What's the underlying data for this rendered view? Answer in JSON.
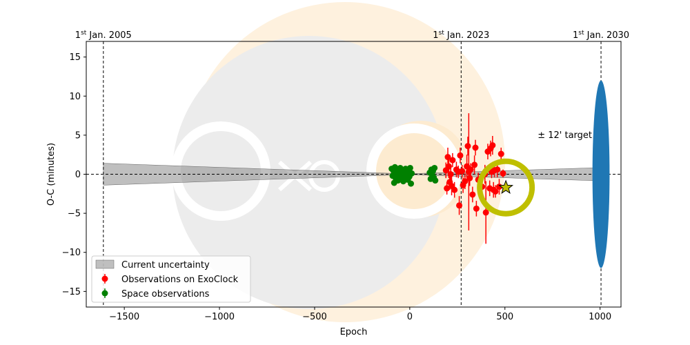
{
  "chart_data": {
    "type": "scatter",
    "title": "",
    "xlabel": "Epoch",
    "ylabel": "O-C (minutes)",
    "xlim": [
      -1700,
      1110
    ],
    "ylim": [
      -17,
      17
    ],
    "x_ticks": [
      -1500,
      -1000,
      -500,
      0,
      500,
      1000
    ],
    "x_tick_labels": [
      "−1500",
      "−1000",
      "−500",
      "0",
      "500",
      "1000"
    ],
    "y_ticks": [
      -15,
      -10,
      -5,
      0,
      5,
      10,
      15
    ],
    "y_tick_labels": [
      "−15",
      "−10",
      "−5",
      "0",
      "5",
      "10",
      "15"
    ],
    "grid": false,
    "legend_position": "lower-left",
    "date_markers": [
      {
        "epoch": -1610,
        "sup": "st",
        "label": "1",
        "rest": " Jan. 2005"
      },
      {
        "epoch": 270,
        "sup": "st",
        "label": "1",
        "rest": " Jan. 2023"
      },
      {
        "epoch": 1005,
        "sup": "st",
        "label": "1",
        "rest": " Jan. 2030"
      }
    ],
    "uncertainty_band": {
      "name": "Current uncertainty",
      "x_start": -1610,
      "x_end": 1005,
      "center_epoch": -20,
      "half_width_start": 1.4,
      "half_width_center": 0.05,
      "half_width_end": 0.85,
      "color": "#808080"
    },
    "target_ellipse": {
      "epoch": 1005,
      "half_width": 12,
      "epoch_half_width": 45,
      "label": "± 12' target",
      "color": "#1f77b4"
    },
    "highlight_point": {
      "epoch": 505,
      "oc": -1.7,
      "ring_color": "#bfbf00",
      "star_color": "#bfbf00"
    },
    "series": [
      {
        "name": "Observations on ExoClock",
        "color": "#ff0000",
        "points": [
          {
            "x": 190,
            "y": 0.5,
            "err": 1.0
          },
          {
            "x": 195,
            "y": -1.8,
            "err": 0.8
          },
          {
            "x": 200,
            "y": 2.2,
            "err": 1.2
          },
          {
            "x": 205,
            "y": 1.0,
            "err": 1.5
          },
          {
            "x": 210,
            "y": -1.0,
            "err": 1.0
          },
          {
            "x": 215,
            "y": 0.0,
            "err": 0.8
          },
          {
            "x": 220,
            "y": -1.5,
            "err": 1.2
          },
          {
            "x": 225,
            "y": 1.8,
            "err": 0.9
          },
          {
            "x": 235,
            "y": -2.0,
            "err": 1.0
          },
          {
            "x": 245,
            "y": 0.6,
            "err": 1.0
          },
          {
            "x": 255,
            "y": 0.3,
            "err": 0.8
          },
          {
            "x": 260,
            "y": -4.0,
            "err": 1.2
          },
          {
            "x": 265,
            "y": 2.4,
            "err": 1.0
          },
          {
            "x": 275,
            "y": 0.4,
            "err": 0.8
          },
          {
            "x": 280,
            "y": -1.4,
            "err": 1.0
          },
          {
            "x": 290,
            "y": -0.9,
            "err": 1.0
          },
          {
            "x": 300,
            "y": 1.0,
            "err": 1.5
          },
          {
            "x": 305,
            "y": 3.6,
            "err": 1.2
          },
          {
            "x": 310,
            "y": 0.3,
            "err": 7.5
          },
          {
            "x": 315,
            "y": -0.5,
            "err": 1.0
          },
          {
            "x": 320,
            "y": 0.6,
            "err": 0.8
          },
          {
            "x": 330,
            "y": -2.6,
            "err": 1.0
          },
          {
            "x": 340,
            "y": 1.2,
            "err": 1.2
          },
          {
            "x": 345,
            "y": 3.4,
            "err": 1.0
          },
          {
            "x": 350,
            "y": -4.4,
            "err": 1.0
          },
          {
            "x": 360,
            "y": -0.7,
            "err": 0.9
          },
          {
            "x": 380,
            "y": -1.6,
            "err": 1.0
          },
          {
            "x": 395,
            "y": 0.0,
            "err": 1.2
          },
          {
            "x": 400,
            "y": -4.9,
            "err": 4.0
          },
          {
            "x": 410,
            "y": 2.9,
            "err": 1.0
          },
          {
            "x": 420,
            "y": -1.8,
            "err": 1.0
          },
          {
            "x": 425,
            "y": 3.3,
            "err": 1.0
          },
          {
            "x": 430,
            "y": 0.3,
            "err": 0.8
          },
          {
            "x": 435,
            "y": 3.7,
            "err": 1.2
          },
          {
            "x": 440,
            "y": -2.0,
            "err": 1.0
          },
          {
            "x": 445,
            "y": 0.5,
            "err": 0.9
          },
          {
            "x": 450,
            "y": -2.2,
            "err": 0.8
          },
          {
            "x": 460,
            "y": 0.6,
            "err": 1.0
          },
          {
            "x": 470,
            "y": -1.6,
            "err": 1.0
          },
          {
            "x": 480,
            "y": 2.6,
            "err": 0.8
          },
          {
            "x": 490,
            "y": 0.1,
            "err": 0.5
          }
        ]
      },
      {
        "name": "Space observations",
        "color": "#008000",
        "points": [
          {
            "x": -95,
            "y": 0.7,
            "err": 0.3
          },
          {
            "x": -90,
            "y": -0.2,
            "err": 0.3
          },
          {
            "x": -85,
            "y": 0.4,
            "err": 0.3
          },
          {
            "x": -82,
            "y": -1.1,
            "err": 0.3
          },
          {
            "x": -78,
            "y": 0.9,
            "err": 0.3
          },
          {
            "x": -74,
            "y": -0.5,
            "err": 0.3
          },
          {
            "x": -70,
            "y": 0.2,
            "err": 0.3
          },
          {
            "x": -66,
            "y": 0.6,
            "err": 0.3
          },
          {
            "x": -62,
            "y": -0.8,
            "err": 0.3
          },
          {
            "x": -58,
            "y": 0.4,
            "err": 0.3
          },
          {
            "x": -54,
            "y": -0.3,
            "err": 0.3
          },
          {
            "x": -50,
            "y": 0.8,
            "err": 0.3
          },
          {
            "x": -46,
            "y": -0.6,
            "err": 0.3
          },
          {
            "x": -42,
            "y": 0.1,
            "err": 0.3
          },
          {
            "x": -38,
            "y": 0.5,
            "err": 0.3
          },
          {
            "x": -34,
            "y": -0.9,
            "err": 0.3
          },
          {
            "x": -30,
            "y": 0.3,
            "err": 0.3
          },
          {
            "x": -26,
            "y": -0.2,
            "err": 0.3
          },
          {
            "x": -22,
            "y": 0.7,
            "err": 0.3
          },
          {
            "x": -18,
            "y": -0.4,
            "err": 0.3
          },
          {
            "x": -14,
            "y": 0.2,
            "err": 0.3
          },
          {
            "x": -10,
            "y": -0.7,
            "err": 0.3
          },
          {
            "x": -6,
            "y": 0.5,
            "err": 0.3
          },
          {
            "x": -2,
            "y": -0.3,
            "err": 0.3
          },
          {
            "x": 2,
            "y": 0.8,
            "err": 0.3
          },
          {
            "x": 6,
            "y": -1.2,
            "err": 0.3
          },
          {
            "x": 10,
            "y": 0.1,
            "err": 0.3
          },
          {
            "x": 105,
            "y": 0.2,
            "err": 0.3
          },
          {
            "x": 110,
            "y": -0.6,
            "err": 0.3
          },
          {
            "x": 114,
            "y": 0.6,
            "err": 0.3
          },
          {
            "x": 118,
            "y": -0.1,
            "err": 0.3
          },
          {
            "x": 122,
            "y": 0.4,
            "err": 0.3
          },
          {
            "x": 126,
            "y": -0.4,
            "err": 0.3
          },
          {
            "x": 130,
            "y": 0.8,
            "err": 0.3
          },
          {
            "x": 134,
            "y": -0.8,
            "err": 0.3
          }
        ]
      }
    ]
  },
  "watermark": {
    "name": "exoclock-logo-watermark",
    "text": "exoclock"
  }
}
